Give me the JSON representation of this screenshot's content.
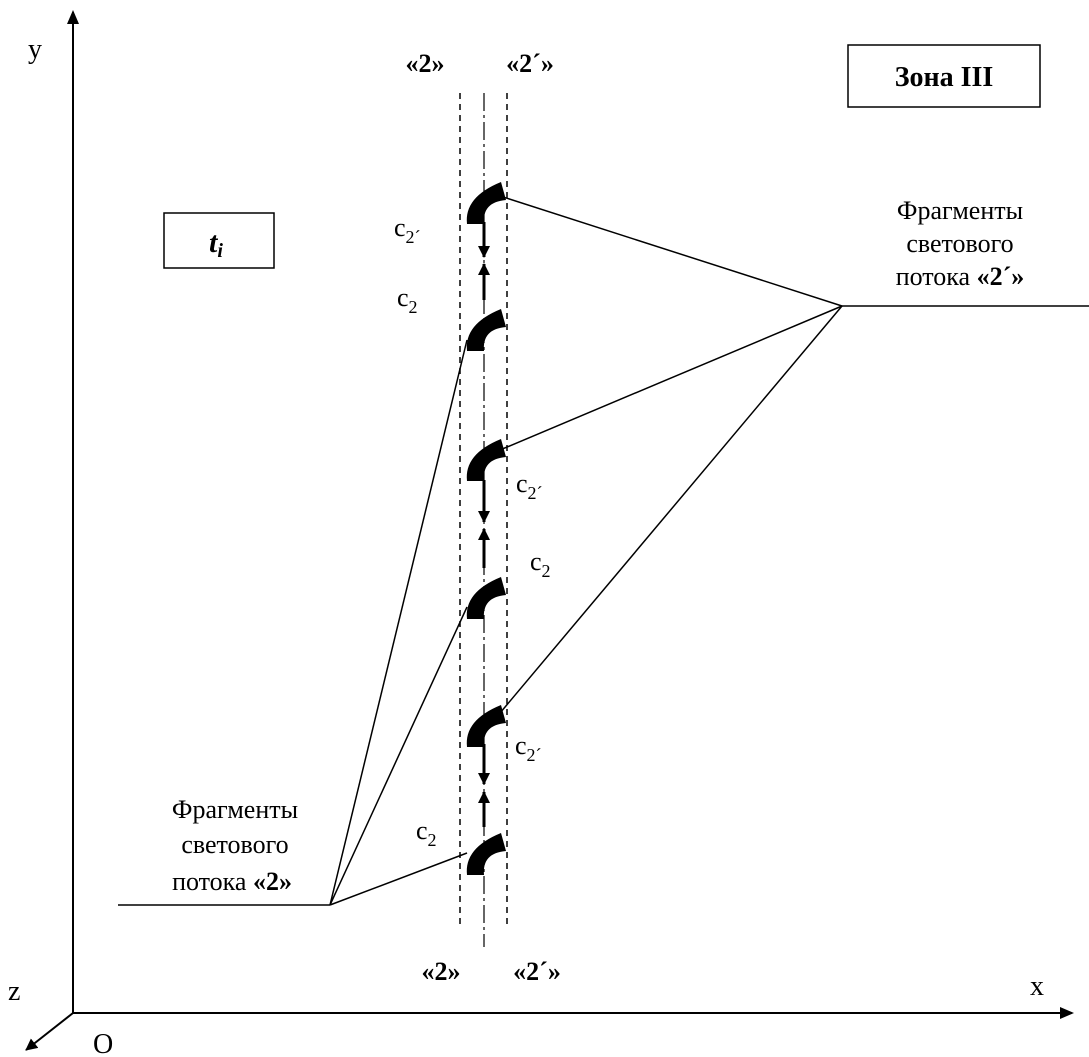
{
  "axes": {
    "y_label": "y",
    "x_label": "x",
    "z_label": "z",
    "origin_label": "O"
  },
  "zone_label": "Зона III",
  "time_label": "t",
  "time_subscript": "i",
  "boundary_labels": {
    "top_left": "«2»",
    "top_right": "«2´»",
    "bottom_left": "«2»",
    "bottom_right": "«2´»"
  },
  "velocity_labels": {
    "c_symbol": "c",
    "sub_2": "2",
    "sub_2prime": "2´"
  },
  "left_caption": {
    "line1": "Фрагменты",
    "line2": "светового",
    "line3_text": "потока ",
    "line3_bold": "«2»"
  },
  "right_caption": {
    "line1": "Фрагменты",
    "line2": "светового",
    "line3_text": "потока ",
    "line3_bold": "«2´»"
  }
}
